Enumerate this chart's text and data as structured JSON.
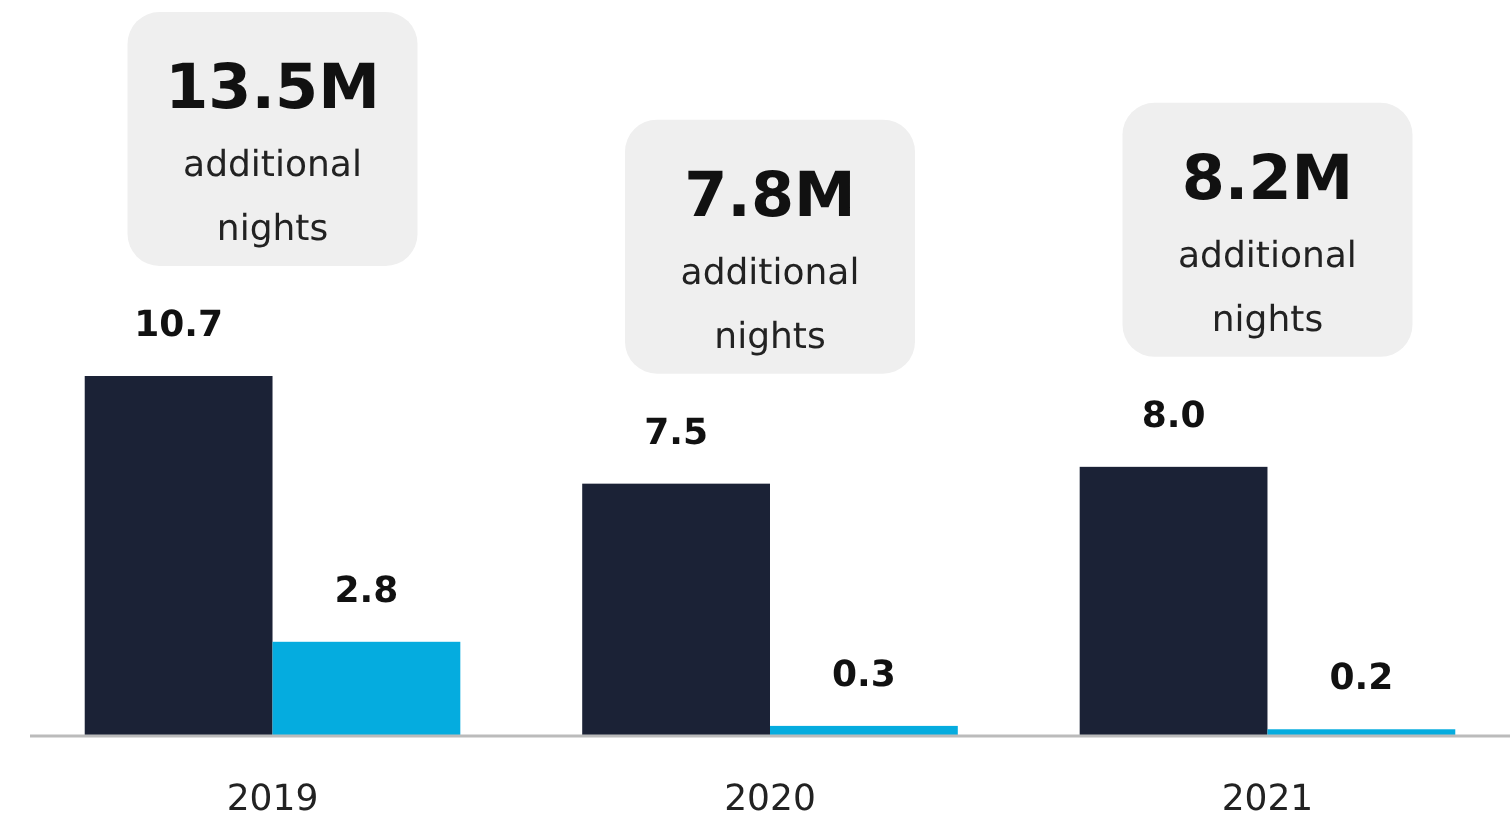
{
  "chart_data": {
    "type": "bar",
    "categories": [
      "2019",
      "2020",
      "2021"
    ],
    "series": [
      {
        "color": "#1b2236",
        "values": [
          10.7,
          7.5,
          8.0
        ],
        "value_labels": [
          "10.7",
          "7.5",
          "8.0"
        ]
      },
      {
        "color": "#05acdf",
        "values": [
          2.8,
          0.3,
          0.2
        ],
        "value_labels": [
          "2.8",
          "0.3",
          "0.2"
        ]
      }
    ],
    "annotations": [
      "13.5M additional nights",
      "7.8M additional nights",
      "8.2M additional nights"
    ]
  }
}
